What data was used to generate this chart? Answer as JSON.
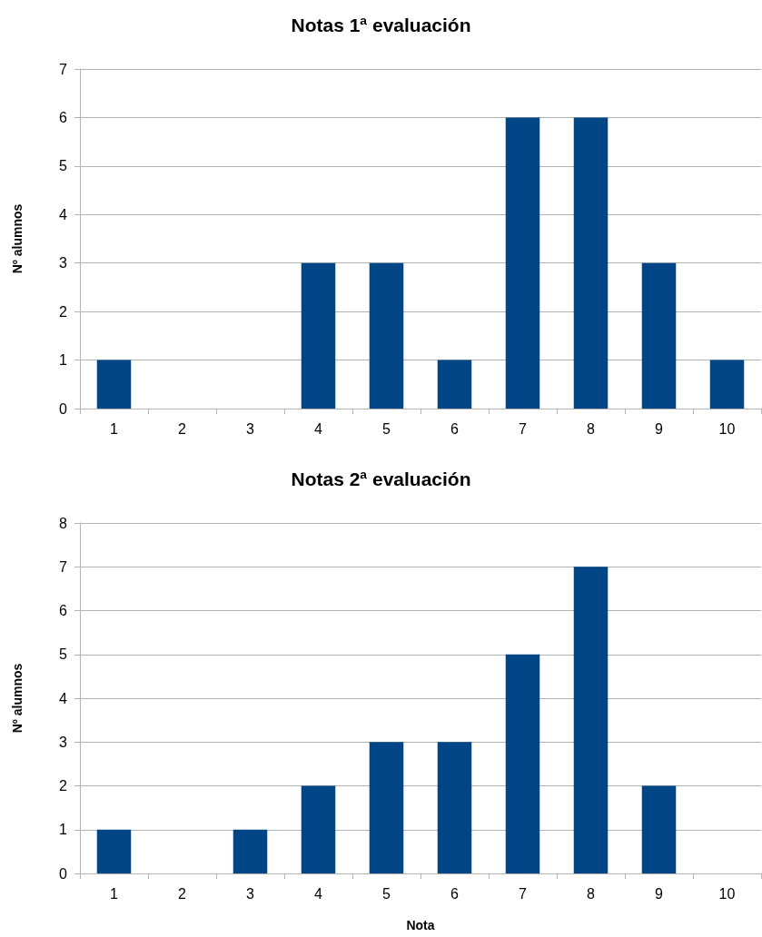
{
  "chart_data": [
    {
      "type": "bar",
      "title": "Notas 1ª evaluación",
      "ylabel": "Nº alumnos",
      "categories": [
        "1",
        "2",
        "3",
        "4",
        "5",
        "6",
        "7",
        "8",
        "9",
        "10"
      ],
      "series": [
        {
          "color": "#004586",
          "values": [
            1,
            0,
            0,
            3,
            3,
            1,
            6,
            6,
            3,
            1
          ]
        }
      ],
      "ylim": [
        0,
        7
      ],
      "yticks": [
        0,
        1,
        2,
        3,
        4,
        5,
        6,
        7
      ],
      "grid": "y"
    },
    {
      "type": "bar",
      "title": "Notas 2ª evaluación",
      "ylabel": "Nº alumnos",
      "xlabel": "Nota",
      "categories": [
        "1",
        "2",
        "3",
        "4",
        "5",
        "6",
        "7",
        "8",
        "9",
        "10"
      ],
      "series": [
        {
          "color": "#004586",
          "values": [
            1,
            0,
            1,
            2,
            3,
            3,
            5,
            7,
            2,
            0
          ]
        }
      ],
      "ylim": [
        0,
        8
      ],
      "yticks": [
        0,
        1,
        2,
        3,
        4,
        5,
        6,
        7,
        8
      ],
      "grid": "y"
    }
  ]
}
